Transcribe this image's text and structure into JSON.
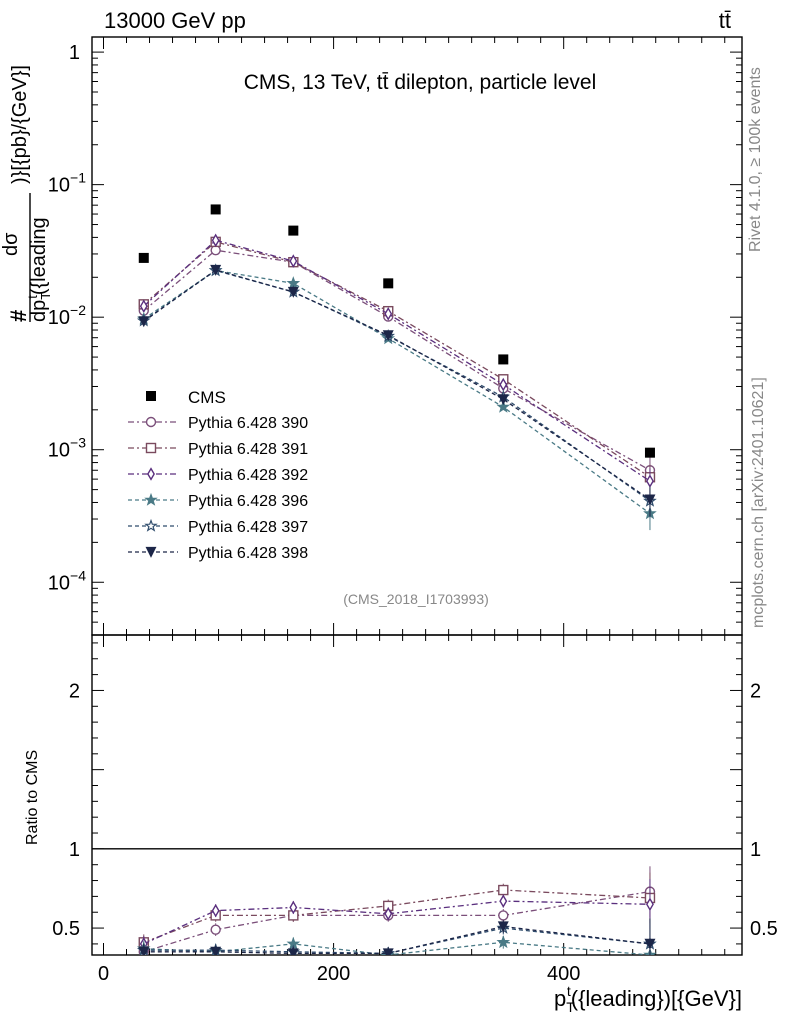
{
  "header": {
    "beam": "13000 GeV pp",
    "process": "tt̄"
  },
  "side": {
    "rivet": "Rivet 4.1.0, ≥ 100k events",
    "mcplots": "mcplots.cern.ch [arXiv:2401.10621]"
  },
  "chart_data": {
    "type": "line",
    "title": "CMS, 13 TeV, tt̄ dilepton, particle level",
    "analysis_tag": "(CMS_2018_I1703993)",
    "ylabel_parts": {
      "hash": "#",
      "numerator": "dσ",
      "denominator": "dp",
      "denominator_sub": "T",
      "denominator_sup": "t",
      "denominator_rest": "({leading",
      "unit": ")}[{pb}/{GeV}]"
    },
    "xlabel_parts": {
      "main": "p",
      "sub": "T",
      "sup": "t",
      "rest": "({leading})[{GeV}]"
    },
    "ratio_ylabel": "Ratio to CMS",
    "xlim": [
      -10,
      555
    ],
    "ylim": [
      4e-05,
      1.3
    ],
    "ratio_ylim": [
      0.33,
      2.35
    ],
    "x_ticks": [
      0,
      200,
      400
    ],
    "x_tick_labels": [
      "0",
      "200",
      "400"
    ],
    "y_ticks": [
      1,
      0.1,
      0.01,
      0.001,
      0.0001
    ],
    "y_tick_labels": [
      {
        "base": "1",
        "exp": ""
      },
      {
        "base": "10",
        "exp": "−1"
      },
      {
        "base": "10",
        "exp": "−2"
      },
      {
        "base": "10",
        "exp": "−3"
      },
      {
        "base": "10",
        "exp": "−4"
      }
    ],
    "ratio_ticks": [
      0.5,
      1,
      2
    ],
    "ratio_tick_labels": [
      "0.5",
      "1",
      "2"
    ],
    "x": [
      35,
      97.5,
      165,
      247.5,
      347.5,
      475
    ],
    "data": {
      "name": "CMS",
      "values": [
        0.028,
        0.065,
        0.045,
        0.018,
        0.0048,
        0.00095
      ]
    },
    "series": [
      {
        "name": "Pythia 6.428 390",
        "color": "#7b4f7a",
        "marker": "circle-open",
        "dash": "6,3,2,3",
        "values": [
          0.0112,
          0.032,
          0.026,
          0.0101,
          0.0029,
          0.0007
        ],
        "ratio": [
          0.35,
          0.49,
          0.58,
          0.58,
          0.58,
          0.73
        ]
      },
      {
        "name": "Pythia 6.428 391",
        "color": "#7a4a5e",
        "marker": "square-open",
        "dash": "6,3,2,3",
        "values": [
          0.0125,
          0.037,
          0.026,
          0.0111,
          0.0034,
          0.00062
        ],
        "ratio": [
          0.41,
          0.58,
          0.58,
          0.64,
          0.74,
          0.69
        ]
      },
      {
        "name": "Pythia 6.428 392",
        "color": "#5a2f7e",
        "marker": "diamond-open",
        "dash": "6,3,2,3",
        "values": [
          0.0121,
          0.038,
          0.0265,
          0.0106,
          0.0031,
          0.00058
        ],
        "ratio": [
          0.4,
          0.61,
          0.63,
          0.59,
          0.67,
          0.65
        ]
      },
      {
        "name": "Pythia 6.428 396",
        "color": "#4a7a86",
        "marker": "star-filled",
        "dash": "4,3",
        "values": [
          0.0097,
          0.0225,
          0.018,
          0.0069,
          0.0021,
          0.00033
        ],
        "ratio": [
          0.37,
          0.35,
          0.4,
          0.33,
          0.41,
          0.33
        ]
      },
      {
        "name": "Pythia 6.428 397",
        "color": "#2f4c6c",
        "marker": "star-open",
        "dash": "4,3",
        "values": [
          0.0094,
          0.0225,
          0.0155,
          0.0072,
          0.0025,
          0.00041
        ],
        "ratio": [
          0.36,
          0.36,
          0.35,
          0.34,
          0.5,
          0.4
        ]
      },
      {
        "name": "Pythia 6.428 398",
        "color": "#1c2648",
        "marker": "tri-down-filled",
        "dash": "4,3",
        "values": [
          0.0093,
          0.0227,
          0.0155,
          0.0073,
          0.0024,
          0.00042
        ],
        "ratio": [
          0.35,
          0.35,
          0.34,
          0.34,
          0.51,
          0.4
        ]
      }
    ]
  }
}
